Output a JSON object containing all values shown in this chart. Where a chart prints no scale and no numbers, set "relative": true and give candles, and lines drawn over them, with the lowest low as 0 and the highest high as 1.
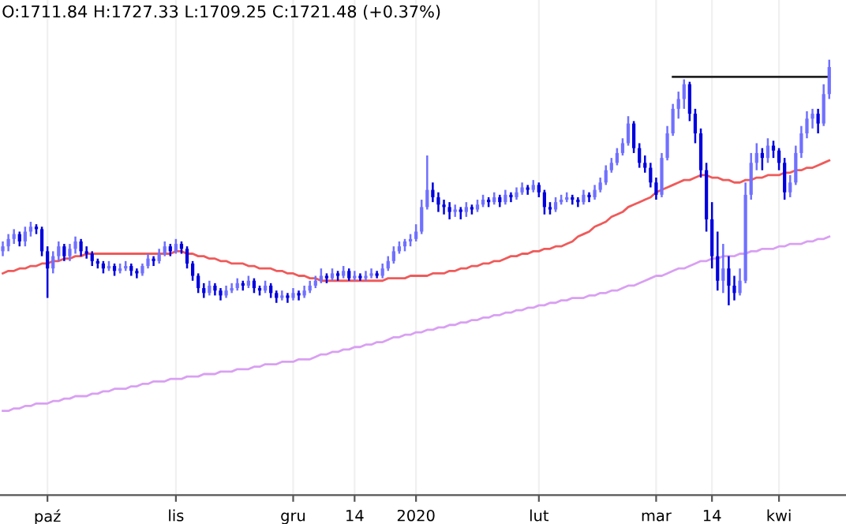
{
  "chart_data": {
    "type": "candlestick",
    "relative": true,
    "colors": [
      "#7070ff",
      "#7070ff",
      "#7070ff",
      "#0000dd",
      "#7070ff",
      "#7070ff",
      "#0000dd",
      "#0000dd",
      "#0000dd",
      "#7070ff",
      "#7070ff",
      "#0000dd",
      "#7070ff",
      "#7070ff",
      "#0000dd",
      "#0000dd",
      "#0000dd",
      "#0000dd",
      "#0000dd",
      "#7070ff",
      "#0000dd",
      "#7070ff",
      "#7070ff",
      "#0000dd",
      "#0000dd",
      "#7070ff",
      "#7070ff",
      "#0000dd",
      "#7070ff",
      "#7070ff",
      "#0000dd",
      "#7070ff",
      "#0000dd",
      "#0000dd",
      "#0000dd",
      "#0000dd",
      "#0000dd",
      "#7070ff",
      "#0000dd",
      "#0000dd",
      "#7070ff",
      "#7070ff",
      "#7070ff",
      "#0000dd",
      "#7070ff",
      "#0000dd",
      "#0000dd",
      "#7070ff",
      "#0000dd",
      "#0000dd",
      "#7070ff",
      "#0000dd",
      "#7070ff",
      "#0000dd",
      "#7070ff",
      "#7070ff",
      "#7070ff",
      "#7070ff",
      "#0000dd",
      "#7070ff",
      "#0000dd",
      "#7070ff",
      "#0000dd",
      "#7070ff",
      "#0000dd",
      "#7070ff",
      "#7070ff",
      "#0000dd",
      "#7070ff",
      "#7070ff",
      "#7070ff",
      "#7070ff",
      "#7070ff",
      "#7070ff",
      "#7070ff",
      "#7070ff",
      "#7070ff",
      "#0000dd",
      "#0000dd",
      "#0000dd",
      "#0000dd",
      "#7070ff",
      "#0000dd",
      "#7070ff",
      "#0000dd",
      "#7070ff",
      "#7070ff",
      "#0000dd",
      "#7070ff",
      "#0000dd",
      "#7070ff",
      "#0000dd",
      "#7070ff",
      "#7070ff",
      "#0000dd",
      "#7070ff",
      "#0000dd",
      "#0000dd",
      "#0000dd",
      "#7070ff",
      "#7070ff",
      "#7070ff",
      "#0000dd",
      "#0000dd",
      "#7070ff",
      "#0000dd",
      "#7070ff",
      "#7070ff",
      "#7070ff",
      "#7070ff",
      "#7070ff",
      "#7070ff",
      "#7070ff",
      "#0000dd",
      "#0000dd",
      "#0000dd",
      "#0000dd",
      "#0000dd",
      "#7070ff",
      "#7070ff",
      "#7070ff",
      "#7070ff",
      "#7070ff",
      "#0000dd",
      "#0000dd",
      "#0000dd",
      "#0000dd",
      "#0000dd",
      "#0000dd",
      "#7070ff",
      "#0000dd",
      "#0000dd",
      "#7070ff",
      "#7070ff",
      "#7070ff",
      "#7070ff",
      "#0000dd",
      "#7070ff",
      "#0000dd",
      "#0000dd",
      "#0000dd",
      "#7070ff",
      "#7070ff",
      "#7070ff",
      "#7070ff",
      "#7070ff",
      "#0000dd",
      "#7070ff",
      "#7070ff"
    ],
    "annotations": [
      "O:1711.84 H:1727.33 L:1709.25 C:1721.48 (+0.37%)"
    ],
    "categories": [
      null,
      null,
      null,
      null,
      null,
      null,
      null,
      null,
      "paź",
      null,
      null,
      null,
      null,
      null,
      null,
      null,
      null,
      null,
      null,
      null,
      null,
      null,
      null,
      null,
      null,
      null,
      null,
      null,
      null,
      null,
      null,
      "lis",
      null,
      null,
      null,
      null,
      null,
      null,
      null,
      null,
      null,
      null,
      null,
      null,
      null,
      null,
      null,
      null,
      null,
      null,
      null,
      null,
      "gru",
      null,
      null,
      null,
      null,
      null,
      null,
      null,
      null,
      null,
      null,
      "14",
      null,
      null,
      null,
      null,
      null,
      null,
      null,
      null,
      null,
      null,
      "2020",
      null,
      null,
      null,
      null,
      null,
      null,
      null,
      null,
      null,
      null,
      null,
      null,
      null,
      null,
      null,
      null,
      null,
      null,
      null,
      null,
      null,
      "lut",
      null,
      null,
      null,
      null,
      null,
      null,
      null,
      null,
      null,
      null,
      null,
      null,
      null,
      null,
      null,
      null,
      null,
      null,
      null,
      null,
      "mar",
      null,
      null,
      null,
      null,
      null,
      null,
      null,
      null,
      null,
      "14",
      null,
      null,
      null,
      null,
      null,
      null,
      null,
      null,
      null,
      null,
      null,
      "kwi",
      null,
      null,
      null,
      null,
      null,
      null,
      null,
      null,
      null
    ],
    "ohlc": [
      [
        0.22,
        0.26,
        0.2,
        0.24
      ],
      [
        0.24,
        0.29,
        0.22,
        0.27
      ],
      [
        0.27,
        0.31,
        0.25,
        0.29
      ],
      [
        0.29,
        0.3,
        0.24,
        0.26
      ],
      [
        0.26,
        0.32,
        0.24,
        0.3
      ],
      [
        0.3,
        0.34,
        0.28,
        0.32
      ],
      [
        0.32,
        0.33,
        0.29,
        0.31
      ],
      [
        0.31,
        0.32,
        0.2,
        0.22
      ],
      [
        0.22,
        0.24,
        0.03,
        0.15
      ],
      [
        0.15,
        0.22,
        0.13,
        0.2
      ],
      [
        0.2,
        0.26,
        0.18,
        0.24
      ],
      [
        0.24,
        0.25,
        0.18,
        0.2
      ],
      [
        0.2,
        0.25,
        0.18,
        0.23
      ],
      [
        0.23,
        0.28,
        0.21,
        0.26
      ],
      [
        0.26,
        0.27,
        0.2,
        0.22
      ],
      [
        0.22,
        0.24,
        0.19,
        0.21
      ],
      [
        0.21,
        0.22,
        0.16,
        0.18
      ],
      [
        0.18,
        0.19,
        0.15,
        0.17
      ],
      [
        0.17,
        0.18,
        0.13,
        0.15
      ],
      [
        0.15,
        0.18,
        0.14,
        0.16
      ],
      [
        0.16,
        0.17,
        0.12,
        0.14
      ],
      [
        0.14,
        0.17,
        0.13,
        0.15
      ],
      [
        0.15,
        0.18,
        0.14,
        0.16
      ],
      [
        0.16,
        0.17,
        0.12,
        0.14
      ],
      [
        0.14,
        0.15,
        0.11,
        0.13
      ],
      [
        0.13,
        0.17,
        0.12,
        0.16
      ],
      [
        0.16,
        0.21,
        0.15,
        0.19
      ],
      [
        0.19,
        0.2,
        0.16,
        0.18
      ],
      [
        0.18,
        0.23,
        0.17,
        0.21
      ],
      [
        0.21,
        0.26,
        0.2,
        0.24
      ],
      [
        0.24,
        0.25,
        0.2,
        0.22
      ],
      [
        0.22,
        0.27,
        0.21,
        0.25
      ],
      [
        0.25,
        0.26,
        0.21,
        0.23
      ],
      [
        0.23,
        0.24,
        0.15,
        0.17
      ],
      [
        0.17,
        0.18,
        0.1,
        0.12
      ],
      [
        0.12,
        0.13,
        0.05,
        0.07
      ],
      [
        0.07,
        0.09,
        0.03,
        0.05
      ],
      [
        0.05,
        0.1,
        0.04,
        0.08
      ],
      [
        0.08,
        0.09,
        0.04,
        0.06
      ],
      [
        0.06,
        0.07,
        0.02,
        0.04
      ],
      [
        0.04,
        0.08,
        0.03,
        0.06
      ],
      [
        0.06,
        0.09,
        0.05,
        0.07
      ],
      [
        0.07,
        0.11,
        0.06,
        0.09
      ],
      [
        0.09,
        0.1,
        0.06,
        0.08
      ],
      [
        0.08,
        0.12,
        0.07,
        0.1
      ],
      [
        0.1,
        0.11,
        0.05,
        0.07
      ],
      [
        0.07,
        0.08,
        0.04,
        0.06
      ],
      [
        0.06,
        0.1,
        0.05,
        0.08
      ],
      [
        0.08,
        0.09,
        0.03,
        0.05
      ],
      [
        0.05,
        0.06,
        0.01,
        0.03
      ],
      [
        0.03,
        0.06,
        0.02,
        0.04
      ],
      [
        0.04,
        0.05,
        0.01,
        0.03
      ],
      [
        0.03,
        0.07,
        0.02,
        0.05
      ],
      [
        0.05,
        0.06,
        0.02,
        0.04
      ],
      [
        0.04,
        0.08,
        0.03,
        0.06
      ],
      [
        0.06,
        0.1,
        0.05,
        0.08
      ],
      [
        0.08,
        0.12,
        0.07,
        0.1
      ],
      [
        0.1,
        0.15,
        0.09,
        0.12
      ],
      [
        0.12,
        0.13,
        0.09,
        0.11
      ],
      [
        0.11,
        0.15,
        0.1,
        0.13
      ],
      [
        0.13,
        0.14,
        0.1,
        0.12
      ],
      [
        0.12,
        0.16,
        0.11,
        0.14
      ],
      [
        0.14,
        0.15,
        0.1,
        0.11
      ],
      [
        0.11,
        0.14,
        0.1,
        0.12
      ],
      [
        0.12,
        0.13,
        0.1,
        0.11
      ],
      [
        0.11,
        0.14,
        0.1,
        0.12
      ],
      [
        0.12,
        0.15,
        0.11,
        0.13
      ],
      [
        0.13,
        0.14,
        0.11,
        0.12
      ],
      [
        0.12,
        0.17,
        0.11,
        0.15
      ],
      [
        0.15,
        0.2,
        0.14,
        0.18
      ],
      [
        0.18,
        0.24,
        0.17,
        0.22
      ],
      [
        0.22,
        0.26,
        0.21,
        0.24
      ],
      [
        0.24,
        0.27,
        0.22,
        0.26
      ],
      [
        0.26,
        0.29,
        0.24,
        0.27
      ],
      [
        0.27,
        0.33,
        0.26,
        0.3
      ],
      [
        0.3,
        0.43,
        0.29,
        0.4
      ],
      [
        0.4,
        0.61,
        0.39,
        0.47
      ],
      [
        0.47,
        0.5,
        0.42,
        0.44
      ],
      [
        0.44,
        0.46,
        0.38,
        0.41
      ],
      [
        0.41,
        0.43,
        0.37,
        0.4
      ],
      [
        0.4,
        0.42,
        0.35,
        0.38
      ],
      [
        0.38,
        0.41,
        0.36,
        0.39
      ],
      [
        0.39,
        0.4,
        0.35,
        0.38
      ],
      [
        0.38,
        0.42,
        0.36,
        0.4
      ],
      [
        0.4,
        0.41,
        0.37,
        0.39
      ],
      [
        0.39,
        0.43,
        0.38,
        0.41
      ],
      [
        0.41,
        0.45,
        0.4,
        0.43
      ],
      [
        0.43,
        0.44,
        0.4,
        0.42
      ],
      [
        0.42,
        0.46,
        0.41,
        0.44
      ],
      [
        0.44,
        0.45,
        0.4,
        0.42
      ],
      [
        0.42,
        0.47,
        0.41,
        0.45
      ],
      [
        0.45,
        0.46,
        0.42,
        0.44
      ],
      [
        0.44,
        0.48,
        0.43,
        0.46
      ],
      [
        0.46,
        0.5,
        0.45,
        0.48
      ],
      [
        0.48,
        0.49,
        0.45,
        0.47
      ],
      [
        0.47,
        0.51,
        0.46,
        0.49
      ],
      [
        0.49,
        0.5,
        0.44,
        0.46
      ],
      [
        0.46,
        0.47,
        0.37,
        0.4
      ],
      [
        0.4,
        0.42,
        0.37,
        0.39
      ],
      [
        0.39,
        0.44,
        0.38,
        0.42
      ],
      [
        0.42,
        0.45,
        0.41,
        0.43
      ],
      [
        0.43,
        0.46,
        0.42,
        0.44
      ],
      [
        0.44,
        0.45,
        0.41,
        0.43
      ],
      [
        0.43,
        0.44,
        0.4,
        0.42
      ],
      [
        0.42,
        0.47,
        0.41,
        0.45
      ],
      [
        0.45,
        0.46,
        0.42,
        0.44
      ],
      [
        0.44,
        0.49,
        0.43,
        0.47
      ],
      [
        0.47,
        0.52,
        0.46,
        0.5
      ],
      [
        0.5,
        0.57,
        0.49,
        0.55
      ],
      [
        0.55,
        0.6,
        0.54,
        0.58
      ],
      [
        0.58,
        0.64,
        0.57,
        0.62
      ],
      [
        0.62,
        0.68,
        0.61,
        0.66
      ],
      [
        0.66,
        0.77,
        0.65,
        0.74
      ],
      [
        0.74,
        0.75,
        0.62,
        0.64
      ],
      [
        0.64,
        0.66,
        0.56,
        0.58
      ],
      [
        0.58,
        0.61,
        0.54,
        0.56
      ],
      [
        0.56,
        0.58,
        0.48,
        0.5
      ],
      [
        0.5,
        0.52,
        0.43,
        0.45
      ],
      [
        0.45,
        0.62,
        0.44,
        0.6
      ],
      [
        0.6,
        0.73,
        0.59,
        0.7
      ],
      [
        0.7,
        0.82,
        0.69,
        0.8
      ],
      [
        0.8,
        0.87,
        0.76,
        0.84
      ],
      [
        0.84,
        0.92,
        0.8,
        0.9
      ],
      [
        0.9,
        0.91,
        0.75,
        0.78
      ],
      [
        0.78,
        0.8,
        0.66,
        0.7
      ],
      [
        0.7,
        0.72,
        0.52,
        0.55
      ],
      [
        0.55,
        0.58,
        0.3,
        0.35
      ],
      [
        0.35,
        0.42,
        0.15,
        0.2
      ],
      [
        0.2,
        0.3,
        0.06,
        0.1
      ],
      [
        0.1,
        0.25,
        0.05,
        0.15
      ],
      [
        0.15,
        0.2,
        0.0,
        0.08
      ],
      [
        0.08,
        0.12,
        0.02,
        0.05
      ],
      [
        0.05,
        0.15,
        0.04,
        0.1
      ],
      [
        0.1,
        0.5,
        0.09,
        0.45
      ],
      [
        0.45,
        0.62,
        0.43,
        0.58
      ],
      [
        0.58,
        0.66,
        0.55,
        0.62
      ],
      [
        0.62,
        0.64,
        0.55,
        0.6
      ],
      [
        0.6,
        0.68,
        0.58,
        0.65
      ],
      [
        0.65,
        0.67,
        0.6,
        0.63
      ],
      [
        0.63,
        0.64,
        0.55,
        0.58
      ],
      [
        0.58,
        0.6,
        0.43,
        0.46
      ],
      [
        0.46,
        0.53,
        0.44,
        0.5
      ],
      [
        0.5,
        0.65,
        0.49,
        0.62
      ],
      [
        0.62,
        0.73,
        0.6,
        0.7
      ],
      [
        0.7,
        0.79,
        0.68,
        0.76
      ],
      [
        0.76,
        0.8,
        0.72,
        0.78
      ],
      [
        0.78,
        0.8,
        0.7,
        0.74
      ],
      [
        0.74,
        0.9,
        0.73,
        0.86
      ],
      [
        0.86,
        1.0,
        0.84,
        0.97
      ]
    ],
    "series": [
      {
        "type": "line",
        "color": "#f05a5a",
        "values": [
          0.13,
          0.14,
          0.14,
          0.15,
          0.15,
          0.16,
          0.16,
          0.17,
          0.17,
          0.18,
          0.18,
          0.19,
          0.19,
          0.2,
          0.2,
          0.21,
          0.21,
          0.21,
          0.21,
          0.21,
          0.21,
          0.21,
          0.21,
          0.21,
          0.21,
          0.21,
          0.21,
          0.21,
          0.21,
          0.21,
          0.21,
          0.22,
          0.22,
          0.21,
          0.21,
          0.2,
          0.2,
          0.19,
          0.19,
          0.18,
          0.18,
          0.17,
          0.17,
          0.17,
          0.16,
          0.16,
          0.15,
          0.15,
          0.15,
          0.14,
          0.14,
          0.13,
          0.13,
          0.12,
          0.12,
          0.11,
          0.11,
          0.1,
          0.1,
          0.1,
          0.1,
          0.1,
          0.1,
          0.1,
          0.1,
          0.1,
          0.1,
          0.1,
          0.1,
          0.11,
          0.11,
          0.11,
          0.11,
          0.12,
          0.12,
          0.12,
          0.12,
          0.13,
          0.13,
          0.13,
          0.14,
          0.14,
          0.15,
          0.15,
          0.16,
          0.16,
          0.17,
          0.17,
          0.18,
          0.18,
          0.19,
          0.2,
          0.2,
          0.21,
          0.21,
          0.22,
          0.22,
          0.23,
          0.23,
          0.24,
          0.24,
          0.25,
          0.26,
          0.28,
          0.29,
          0.3,
          0.32,
          0.33,
          0.34,
          0.36,
          0.37,
          0.38,
          0.4,
          0.41,
          0.42,
          0.43,
          0.44,
          0.46,
          0.47,
          0.48,
          0.49,
          0.5,
          0.51,
          0.51,
          0.52,
          0.53,
          0.53,
          0.52,
          0.52,
          0.51,
          0.51,
          0.5,
          0.5,
          0.51,
          0.51,
          0.52,
          0.52,
          0.53,
          0.53,
          0.53,
          0.54,
          0.54,
          0.55,
          0.55,
          0.56,
          0.56,
          0.57,
          0.58,
          0.59
        ]
      },
      {
        "type": "line",
        "color": "#d9a0f2",
        "values": [
          -0.43,
          -0.43,
          -0.42,
          -0.42,
          -0.41,
          -0.41,
          -0.4,
          -0.4,
          -0.4,
          -0.39,
          -0.39,
          -0.38,
          -0.38,
          -0.37,
          -0.37,
          -0.37,
          -0.36,
          -0.36,
          -0.35,
          -0.35,
          -0.34,
          -0.34,
          -0.34,
          -0.33,
          -0.33,
          -0.32,
          -0.32,
          -0.31,
          -0.31,
          -0.31,
          -0.3,
          -0.3,
          -0.3,
          -0.29,
          -0.29,
          -0.29,
          -0.28,
          -0.28,
          -0.28,
          -0.27,
          -0.27,
          -0.27,
          -0.26,
          -0.26,
          -0.26,
          -0.25,
          -0.25,
          -0.24,
          -0.24,
          -0.24,
          -0.23,
          -0.23,
          -0.23,
          -0.22,
          -0.22,
          -0.22,
          -0.21,
          -0.2,
          -0.2,
          -0.19,
          -0.19,
          -0.18,
          -0.18,
          -0.17,
          -0.17,
          -0.16,
          -0.16,
          -0.15,
          -0.15,
          -0.14,
          -0.13,
          -0.13,
          -0.12,
          -0.12,
          -0.11,
          -0.11,
          -0.1,
          -0.1,
          -0.09,
          -0.09,
          -0.08,
          -0.08,
          -0.07,
          -0.07,
          -0.06,
          -0.06,
          -0.05,
          -0.05,
          -0.04,
          -0.04,
          -0.03,
          -0.03,
          -0.02,
          -0.02,
          -0.01,
          -0.01,
          0.0,
          0.0,
          0.01,
          0.01,
          0.02,
          0.02,
          0.03,
          0.03,
          0.03,
          0.04,
          0.04,
          0.05,
          0.05,
          0.06,
          0.06,
          0.07,
          0.08,
          0.08,
          0.09,
          0.1,
          0.11,
          0.12,
          0.12,
          0.13,
          0.14,
          0.15,
          0.15,
          0.16,
          0.17,
          0.18,
          0.18,
          0.19,
          0.19,
          0.2,
          0.2,
          0.2,
          0.21,
          0.21,
          0.22,
          0.22,
          0.23,
          0.23,
          0.23,
          0.24,
          0.24,
          0.25,
          0.25,
          0.25,
          0.26,
          0.26,
          0.27,
          0.27,
          0.28
        ]
      },
      {
        "type": "line",
        "color": "#222222",
        "values": [
          null,
          null,
          null,
          null,
          null,
          null,
          null,
          null,
          null,
          null,
          null,
          null,
          null,
          null,
          null,
          null,
          null,
          null,
          null,
          null,
          null,
          null,
          null,
          null,
          null,
          null,
          null,
          null,
          null,
          null,
          null,
          null,
          null,
          null,
          null,
          null,
          null,
          null,
          null,
          null,
          null,
          null,
          null,
          null,
          null,
          null,
          null,
          null,
          null,
          null,
          null,
          null,
          null,
          null,
          null,
          null,
          null,
          null,
          null,
          null,
          null,
          null,
          null,
          null,
          null,
          null,
          null,
          null,
          null,
          null,
          null,
          null,
          null,
          null,
          null,
          null,
          null,
          null,
          null,
          null,
          null,
          null,
          null,
          null,
          null,
          null,
          null,
          null,
          null,
          null,
          null,
          null,
          null,
          null,
          null,
          null,
          null,
          null,
          null,
          null,
          null,
          null,
          null,
          null,
          null,
          null,
          null,
          null,
          null,
          null,
          null,
          null,
          null,
          null,
          null,
          null,
          null,
          null,
          null,
          null,
          0.93,
          0.93,
          0.93,
          0.93,
          0.93,
          0.93,
          0.93,
          0.93,
          0.93,
          0.93,
          0.93,
          0.93,
          0.93,
          0.93,
          0.93,
          0.93,
          0.93,
          0.93,
          0.93,
          0.93,
          0.93,
          0.93,
          0.93,
          0.93,
          0.93,
          0.93,
          0.93,
          0.93,
          0.93
        ]
      }
    ],
    "grid": "x"
  }
}
